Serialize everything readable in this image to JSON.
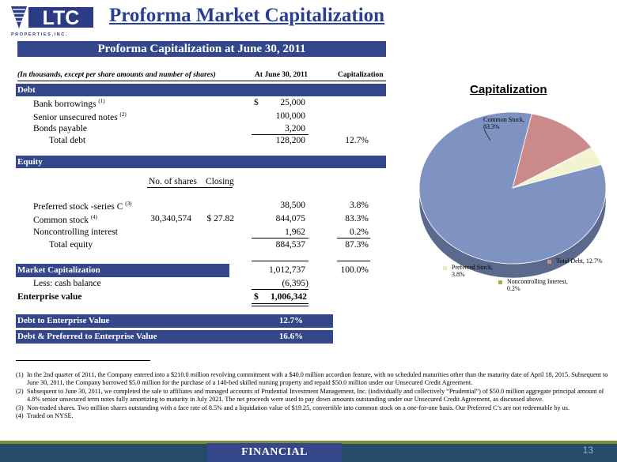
{
  "logo": {
    "letters": "LTC",
    "tagline": "P R O P E R T I E S ,   I N C ."
  },
  "page_title": "Proforma Market Capitalization",
  "table_title": "Proforma Capitalization at June 30, 2011",
  "header": {
    "note": "(In thousands, except per share amounts and number of shares)",
    "col_date": "At June 30, 2011",
    "col_cap": "Capitalization"
  },
  "debt": {
    "section": "Debt",
    "bank_label": "Bank borrowings",
    "bank_fn": "(1)",
    "bank_dollar": "$",
    "bank_value": "25,000",
    "senior_label": "Senior unsecured notes",
    "senior_fn": "(2)",
    "senior_value": "100,000",
    "bonds_label": "Bonds payable",
    "bonds_value": "3,200",
    "total_label": "Total debt",
    "total_value": "128,200",
    "total_pct": "12.7%"
  },
  "equity": {
    "section": "Equity",
    "col_shares": "No. of shares",
    "col_closing": "Closing",
    "pref_label": "Preferred stock -series C",
    "pref_fn": "(3)",
    "pref_value": "38,500",
    "pref_pct": "3.8%",
    "common_label": "Common stock",
    "common_fn": "(4)",
    "common_shares": "30,340,574",
    "common_closing": "$ 27.82",
    "common_value": "844,075",
    "common_pct": "83.3%",
    "nci_label": "Noncontrolling interest",
    "nci_value": "1,962",
    "nci_pct": "0.2%",
    "total_label": "Total equity",
    "total_value": "884,537",
    "total_pct": "87.3%"
  },
  "market": {
    "label": "Market Capitalization",
    "value": "1,012,737",
    "pct": "100.0%",
    "cash_label": "Less:  cash balance",
    "cash_value": "(6,395)",
    "ev_label": "Enterprise value",
    "ev_dollar": "$",
    "ev_value": "1,006,342"
  },
  "ratios": {
    "debt_ev_label": "Debt to Enterprise Value",
    "debt_ev_value": "12.7%",
    "debt_pref_label": "Debt & Preferred to Enterprise Value",
    "debt_pref_value": "16.6%"
  },
  "footnotes": [
    {
      "n": "(1)",
      "text": "In the 2nd quarter of 2011, the Company entered into a $210.0 million revolving commitment with a $40.0 million accordion feature, with no scheduled maturities other than the maturity date of April 18, 2015. Subsequent to June 30, 2011, the Company borrowed $5.0 million for the purchase of a 140-bed skilled nursing property and repaid $50.0 million under our Unsecured Credit Agreement."
    },
    {
      "n": "(2)",
      "text": "Subsequent to June 30, 2011, we completed the sale to affiliates and managed accounts of Prudential Investment Management, Inc. (individually and collectively “Prudential”) of $50.0 million aggregate principal amount of 4.8% senior unsecured term notes fully amortizing to maturity in July 2021. The net proceeds were used to pay down amounts outstanding under our Unsecured Credit Agreement, as discussed above."
    },
    {
      "n": "(3)",
      "text": "Non-traded shares.  Two million shares outstanding with a face rate of 8.5% and a liquidation value of $19.25, convertible into common stock on a one-for-one basis.  Our Preferred C’s are not redeemable by us."
    },
    {
      "n": "(4)",
      "text": "Traded on NYSE."
    }
  ],
  "chart_data": {
    "type": "pie",
    "title": "Capitalization",
    "categories": [
      "Common Stock",
      "Total Debt",
      "Noncontrolling Interest",
      "Preferred Stock"
    ],
    "values": [
      83.3,
      12.7,
      0.2,
      3.8
    ],
    "labels": [
      "Common Stock, 83.3%",
      "Total Debt, 12.7%",
      "Noncontrolling Interest, 0.2%",
      "Preferred Stock, 3.8%"
    ],
    "colors": [
      "#7f93c2",
      "#c98a89",
      "#9bb356",
      "#f2f4cf"
    ],
    "style": "3d"
  },
  "footer": {
    "label": "FINANCIAL",
    "page": "13"
  }
}
